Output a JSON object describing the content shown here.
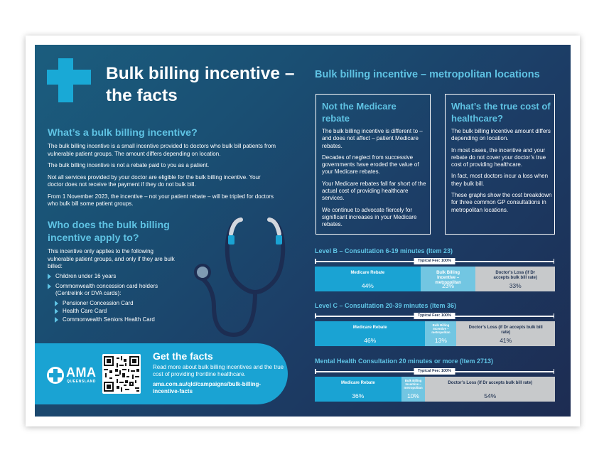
{
  "colors": {
    "background_start": "#1b5d7e",
    "background_end": "#1d2c52",
    "accent": "#19a9d6",
    "heading": "#5fc3e4",
    "rebate": "#1aa3d3",
    "incentive": "#72c6e2",
    "loss": "#c7c9cb"
  },
  "left": {
    "title": "Bulk billing incentive – the facts",
    "section1": {
      "heading": "What’s a bulk billing incentive?",
      "paragraphs": [
        "The bulk billing incentive is a small incentive provided to doctors who bulk bill patients from vulnerable patient groups. The amount differs depending on location.",
        "The bulk billing incentive is not a rebate paid to you as a patient.",
        "Not all services provided by your doctor are eligible for the bulk billing incentive. Your doctor does not receive the payment if they do not bulk bill.",
        "From 1 November 2023, the incentive – not your patient rebate – will be tripled for doctors who bulk bill some patient groups."
      ]
    },
    "section2": {
      "heading": "Who does the bulk billing incentive apply to?",
      "intro": "This incentive only applies to the following vulnerable patient groups, and only if they are bulk billed:",
      "items": [
        "Children under 16 years",
        "Commonwealth concession card holders (Centrelink or DVA cards):"
      ],
      "subitems": [
        "Pensioner Concession Card",
        "Health Care Card",
        "Commonwealth Seniors Health Card"
      ]
    },
    "facts": {
      "logo_text": "AMA",
      "logo_sub": "QUEENSLAND",
      "heading": "Get the facts",
      "text": "Read more about bulk billing incentives and the true cost of providing frontline healthcare.",
      "url": "ama.com.au/qld/campaigns/bulk-billing-incentive-facts"
    }
  },
  "right": {
    "title": "Bulk billing incentive – metropolitan locations",
    "box1": {
      "heading": "Not the Medicare rebate",
      "paragraphs": [
        "The bulk billing incentive is different to – and does not affect – patient Medicare rebates.",
        "Decades of neglect from successive governments have eroded the value of your Medicare rebates.",
        "Your Medicare rebates fall far short of the actual cost of providing healthcare services.",
        "We continue to advocate fiercely for significant increases in your Medicare rebates."
      ]
    },
    "box2": {
      "heading": "What’s the true cost of healthcare?",
      "paragraphs": [
        "The bulk billing incentive amount differs depending on location.",
        "In most cases, the incentive and your rebate do not cover your doctor’s true cost of providing healthcare.",
        "In fact, most doctors incur a loss when they bulk bill.",
        "These graphs show the cost breakdown for three common GP consultations in metropolitan locations."
      ]
    }
  },
  "chart_data": [
    {
      "type": "bar",
      "stacked": true,
      "orientation": "horizontal",
      "title": "Level B – Consultation 6-19 minutes (Item 23)",
      "total_label": "Typical Fee: 100%",
      "series": [
        {
          "name": "Medicare Rebate",
          "values": [
            44
          ],
          "display": "44%"
        },
        {
          "name": "Bulk Billing Incentive – metropolitan",
          "values": [
            23
          ],
          "display": "23%"
        },
        {
          "name": "Doctor’s Loss (if Dr accepts bulk bill rate)",
          "values": [
            33
          ],
          "display": "33%"
        }
      ]
    },
    {
      "type": "bar",
      "stacked": true,
      "orientation": "horizontal",
      "title": "Level C – Consultation 20-39 minutes (Item 36)",
      "total_label": "Typical Fee: 100%",
      "series": [
        {
          "name": "Medicare Rebate",
          "values": [
            46
          ],
          "display": "46%"
        },
        {
          "name": "Bulk Billing Incentive – metropolitan",
          "values": [
            13
          ],
          "display": "13%"
        },
        {
          "name": "Doctor’s Loss (if Dr accepts bulk bill rate)",
          "values": [
            41
          ],
          "display": "41%"
        }
      ]
    },
    {
      "type": "bar",
      "stacked": true,
      "orientation": "horizontal",
      "title": "Mental Health Consultation 20 minutes or more (Item 2713)",
      "total_label": "Typical Fee: 100%",
      "series": [
        {
          "name": "Medicare Rebate",
          "values": [
            36
          ],
          "display": "36%"
        },
        {
          "name": "Bulk Billing Incentive – metropolitan",
          "values": [
            10
          ],
          "display": "10%"
        },
        {
          "name": "Doctor’s Loss (if Dr accepts bulk bill rate)",
          "values": [
            54
          ],
          "display": "54%"
        }
      ]
    }
  ]
}
